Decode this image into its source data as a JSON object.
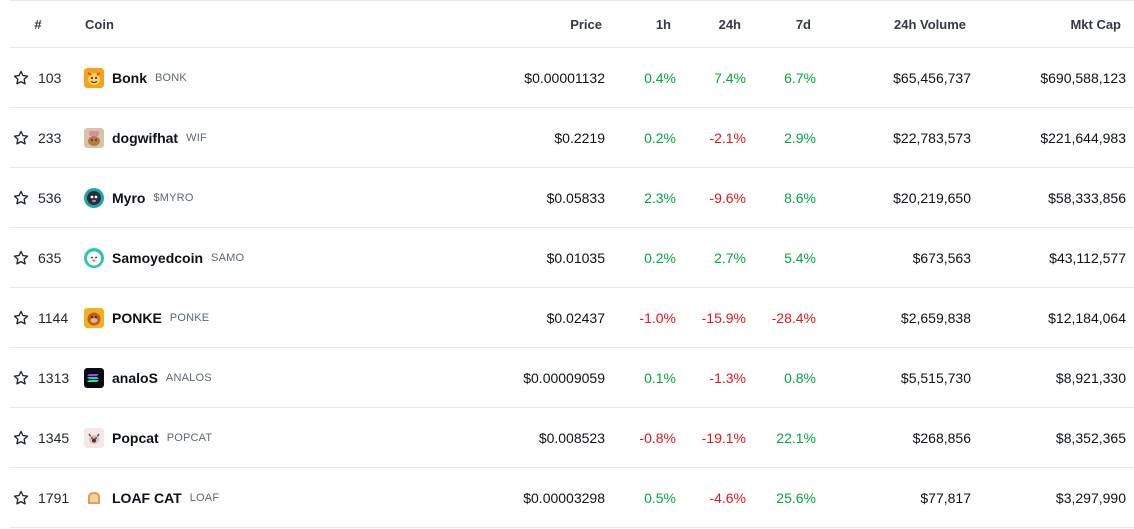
{
  "header": {
    "rank": "#",
    "coin": "Coin",
    "price": "Price",
    "h1": "1h",
    "h24": "24h",
    "d7": "7d",
    "volume": "24h Volume",
    "mcap": "Mkt Cap"
  },
  "colors": {
    "up": "#00a83e",
    "down": "#e5161d"
  },
  "rows": [
    {
      "rank": "103",
      "name": "Bonk",
      "symbol": "BONK",
      "icon": "bonk-logo-icon",
      "price": "$0.00001132",
      "h1": "0.4%",
      "h1_dir": "up",
      "h24": "7.4%",
      "h24_dir": "up",
      "d7": "6.7%",
      "d7_dir": "up",
      "volume": "$65,456,737",
      "mcap": "$690,588,123"
    },
    {
      "rank": "233",
      "name": "dogwifhat",
      "symbol": "WIF",
      "icon": "dogwifhat-logo-icon",
      "price": "$0.2219",
      "h1": "0.2%",
      "h1_dir": "up",
      "h24": "-2.1%",
      "h24_dir": "down",
      "d7": "2.9%",
      "d7_dir": "up",
      "volume": "$22,783,573",
      "mcap": "$221,644,983"
    },
    {
      "rank": "536",
      "name": "Myro",
      "symbol": "$MYRO",
      "icon": "myro-logo-icon",
      "price": "$0.05833",
      "h1": "2.3%",
      "h1_dir": "up",
      "h24": "-9.6%",
      "h24_dir": "down",
      "d7": "8.6%",
      "d7_dir": "up",
      "volume": "$20,219,650",
      "mcap": "$58,333,856"
    },
    {
      "rank": "635",
      "name": "Samoyedcoin",
      "symbol": "SAMO",
      "icon": "samoyedcoin-logo-icon",
      "price": "$0.01035",
      "h1": "0.2%",
      "h1_dir": "up",
      "h24": "2.7%",
      "h24_dir": "up",
      "d7": "5.4%",
      "d7_dir": "up",
      "volume": "$673,563",
      "mcap": "$43,112,577"
    },
    {
      "rank": "1144",
      "name": "PONKE",
      "symbol": "PONKE",
      "icon": "ponke-logo-icon",
      "price": "$0.02437",
      "h1": "-1.0%",
      "h1_dir": "down",
      "h24": "-15.9%",
      "h24_dir": "down",
      "d7": "-28.4%",
      "d7_dir": "down",
      "volume": "$2,659,838",
      "mcap": "$12,184,064"
    },
    {
      "rank": "1313",
      "name": "analoS",
      "symbol": "ANALOS",
      "icon": "analos-logo-icon",
      "price": "$0.00009059",
      "h1": "0.1%",
      "h1_dir": "up",
      "h24": "-1.3%",
      "h24_dir": "down",
      "d7": "0.8%",
      "d7_dir": "up",
      "volume": "$5,515,730",
      "mcap": "$8,921,330"
    },
    {
      "rank": "1345",
      "name": "Popcat",
      "symbol": "POPCAT",
      "icon": "popcat-logo-icon",
      "price": "$0.008523",
      "h1": "-0.8%",
      "h1_dir": "down",
      "h24": "-19.1%",
      "h24_dir": "down",
      "d7": "22.1%",
      "d7_dir": "up",
      "volume": "$268,856",
      "mcap": "$8,352,365"
    },
    {
      "rank": "1791",
      "name": "LOAF CAT",
      "symbol": "LOAF",
      "icon": "loaf-cat-logo-icon",
      "price": "$0.00003298",
      "h1": "0.5%",
      "h1_dir": "up",
      "h24": "-4.6%",
      "h24_dir": "down",
      "d7": "25.6%",
      "d7_dir": "up",
      "volume": "$77,817",
      "mcap": "$3,297,990"
    }
  ]
}
